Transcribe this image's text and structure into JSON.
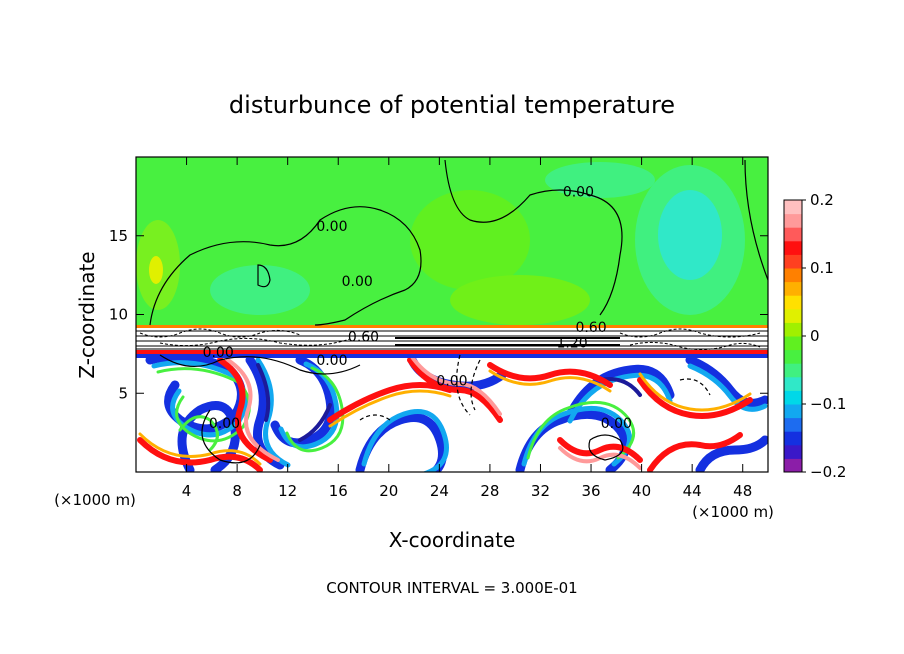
{
  "chart_data": {
    "type": "heatmap",
    "title": "disturbunce of potential temperature",
    "xlabel": "X-coordinate",
    "ylabel": "Z-coordinate",
    "x_unit_left": "(×1000 m)",
    "x_unit_right": "(×1000 m)",
    "xlim": [
      0,
      50
    ],
    "ylim": [
      0,
      20
    ],
    "x_ticks": [
      4,
      8,
      12,
      16,
      20,
      24,
      28,
      32,
      36,
      40,
      44,
      48
    ],
    "x_tick_labels": [
      "4",
      "8",
      "12",
      "16",
      "20",
      "24",
      "28",
      "32",
      "36",
      "40",
      "44",
      "48"
    ],
    "y_ticks": [
      5,
      10,
      15
    ],
    "y_tick_labels": [
      "5",
      "10",
      "15"
    ],
    "contour_interval_text": "CONTOUR INTERVAL = 3.000E-01",
    "colorbar": {
      "range": [
        -0.2,
        0.2
      ],
      "ticks": [
        0.2,
        0.1,
        0,
        -0.1,
        -0.2
      ],
      "tick_labels": [
        "0.2",
        "0.1",
        "0",
        "−0.1",
        "−0.2"
      ],
      "colors": [
        "#8b1ea8",
        "#3a18c8",
        "#1430e0",
        "#1d6cf0",
        "#12a8f0",
        "#00d8e8",
        "#30e8c8",
        "#40f080",
        "#48f040",
        "#60f020",
        "#a0f000",
        "#e0f000",
        "#ffe000",
        "#ffb000",
        "#ff8000",
        "#ff4020",
        "#ff1010",
        "#ff5a5a",
        "#ff9a9a",
        "#ffc0c0"
      ]
    },
    "contour_labels": [
      {
        "text": "0.00",
        "x": 15.5,
        "z": 15.3
      },
      {
        "text": "0.00",
        "x": 35.0,
        "z": 17.5
      },
      {
        "text": "0.00",
        "x": 17.5,
        "z": 11.8
      },
      {
        "text": "0.00",
        "x": 6.5,
        "z": 7.3
      },
      {
        "text": "0.00",
        "x": 15.5,
        "z": 6.8
      },
      {
        "text": "0.60",
        "x": 18.0,
        "z": 8.3
      },
      {
        "text": "0.60",
        "x": 36.0,
        "z": 8.9
      },
      {
        "text": "1.20",
        "x": 34.5,
        "z": 7.9
      },
      {
        "text": "0.00",
        "x": 25.0,
        "z": 5.5
      },
      {
        "text": "0.00",
        "x": 7.0,
        "z": 2.8
      },
      {
        "text": "0.00",
        "x": 38.0,
        "z": 2.8
      }
    ]
  }
}
